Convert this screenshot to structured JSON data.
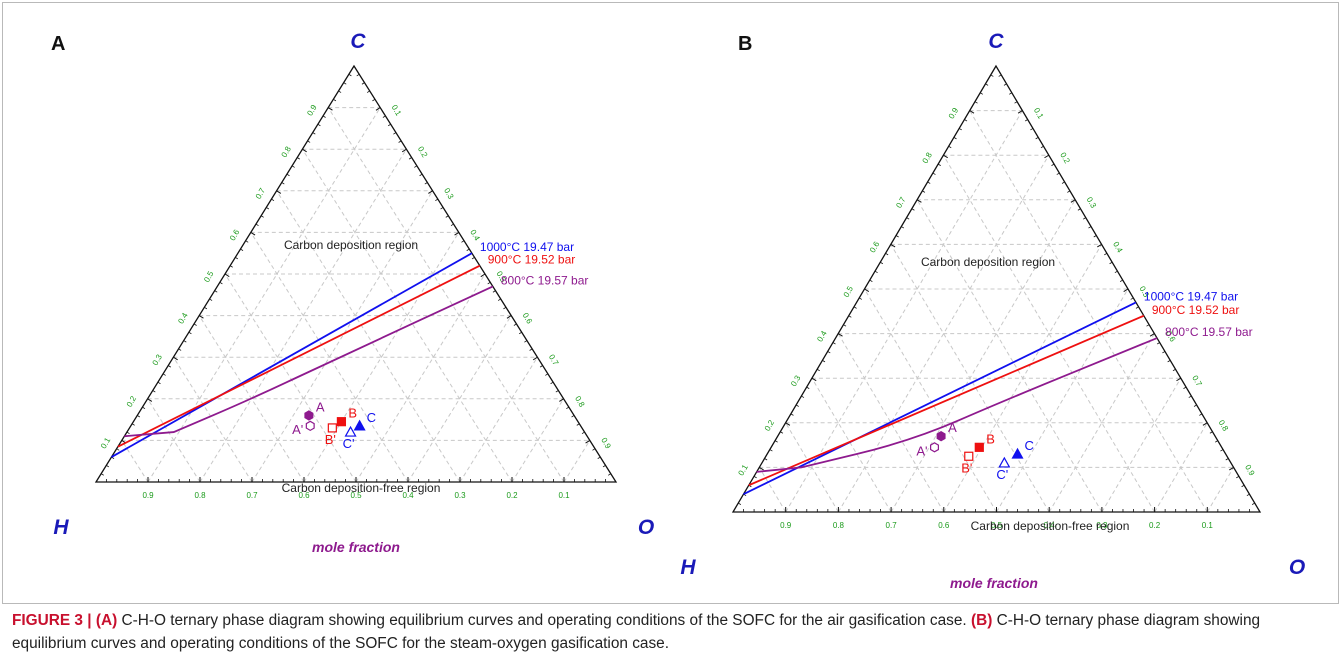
{
  "figure": {
    "caption_label": "FIGURE 3 |",
    "caption_parts": [
      {
        "bold": "(A)",
        "text": " C-H-O ternary phase diagram showing equilibrium curves and operating conditions of the SOFC for the air gasification case. "
      },
      {
        "bold": "(B)",
        "text": " C-H-O ternary phase diagram showing equilibrium curves and operating conditions of the SOFC for the steam-oxygen gasification case."
      }
    ]
  },
  "colors": {
    "vertex_label": "#1a1ab8",
    "tick_label": "#1a9a1a",
    "axis_title": "#8e1a8e",
    "grid": "#c8c8c8",
    "curve_1000": "#1010ee",
    "curve_900": "#ee1010",
    "curve_800": "#8e1a8e"
  },
  "chart_data": [
    {
      "type": "ternary",
      "panel_label": "A",
      "vertices": {
        "top": "C",
        "left": "H",
        "right": "O"
      },
      "axis_title": "mole fraction",
      "tick_values": [
        "0.1",
        "0.2",
        "0.3",
        "0.4",
        "0.5",
        "0.6",
        "0.7",
        "0.8",
        "0.9"
      ],
      "region_labels": [
        "Carbon deposition region",
        "Carbon deposition-free region"
      ],
      "series": [
        {
          "name": "1000°C 19.47 bar",
          "color": "#1010ee",
          "points": [
            {
              "C": 0.06,
              "H": 0.94,
              "O": 0.0
            },
            {
              "C": 0.55,
              "H": 0.0,
              "O": 0.45
            }
          ]
        },
        {
          "name": "900°C 19.52 bar",
          "color": "#ee1010",
          "points": [
            {
              "C": 0.085,
              "H": 0.915,
              "O": 0.0
            },
            {
              "C": 0.52,
              "H": 0.0,
              "O": 0.48
            }
          ]
        },
        {
          "name": "800°C 19.57 bar",
          "color": "#8e1a8e",
          "points": [
            {
              "C": 0.11,
              "H": 0.89,
              "O": 0.0
            },
            {
              "C": 0.12,
              "H": 0.79,
              "O": 0.09
            },
            {
              "C": 0.2,
              "H": 0.6,
              "O": 0.2
            },
            {
              "C": 0.3,
              "H": 0.38,
              "O": 0.32
            },
            {
              "C": 0.47,
              "H": 0.0,
              "O": 0.53
            }
          ]
        }
      ],
      "points": [
        {
          "label": "A",
          "marker": "filled-hexagon",
          "color": "#8e1a8e",
          "C": 0.16,
          "H": 0.51,
          "O": 0.33
        },
        {
          "label": "A'",
          "marker": "open-hexagon",
          "color": "#8e1a8e",
          "C": 0.135,
          "H": 0.52,
          "O": 0.345
        },
        {
          "label": "B",
          "marker": "filled-square",
          "color": "#ee1010",
          "C": 0.145,
          "H": 0.455,
          "O": 0.4
        },
        {
          "label": "B'",
          "marker": "open-square",
          "color": "#ee1010",
          "C": 0.13,
          "H": 0.48,
          "O": 0.39
        },
        {
          "label": "C",
          "marker": "filled-triangle",
          "color": "#1010ee",
          "C": 0.135,
          "H": 0.425,
          "O": 0.44
        },
        {
          "label": "C'",
          "marker": "open-triangle",
          "color": "#1010ee",
          "C": 0.12,
          "H": 0.45,
          "O": 0.43
        }
      ]
    },
    {
      "type": "ternary",
      "panel_label": "B",
      "vertices": {
        "top": "C",
        "left": "H",
        "right": "O"
      },
      "axis_title": "mole fraction",
      "tick_values": [
        "0.1",
        "0.2",
        "0.3",
        "0.4",
        "0.5",
        "0.6",
        "0.7",
        "0.8",
        "0.9"
      ],
      "region_labels": [
        "Carbon deposition region",
        "Carbon deposition-free region"
      ],
      "series": [
        {
          "name": "1000°C 19.47 bar",
          "color": "#1010ee",
          "points": [
            {
              "C": 0.04,
              "H": 0.96,
              "O": 0.0
            },
            {
              "C": 0.47,
              "H": 0.0,
              "O": 0.53
            }
          ]
        },
        {
          "name": "900°C 19.52 bar",
          "color": "#ee1010",
          "points": [
            {
              "C": 0.06,
              "H": 0.94,
              "O": 0.0
            },
            {
              "C": 0.44,
              "H": 0.0,
              "O": 0.56
            }
          ]
        },
        {
          "name": "800°C 19.57 bar",
          "color": "#8e1a8e",
          "points": [
            {
              "C": 0.09,
              "H": 0.91,
              "O": 0.0
            },
            {
              "C": 0.1,
              "H": 0.82,
              "O": 0.08
            },
            {
              "C": 0.16,
              "H": 0.58,
              "O": 0.26
            },
            {
              "C": 0.25,
              "H": 0.36,
              "O": 0.39
            },
            {
              "C": 0.39,
              "H": 0.0,
              "O": 0.61
            }
          ]
        }
      ],
      "points": [
        {
          "label": "A",
          "marker": "filled-hexagon",
          "color": "#8e1a8e",
          "C": 0.17,
          "H": 0.52,
          "O": 0.31
        },
        {
          "label": "A'",
          "marker": "open-hexagon",
          "color": "#8e1a8e",
          "C": 0.145,
          "H": 0.545,
          "O": 0.31
        },
        {
          "label": "B",
          "marker": "filled-square",
          "color": "#ee1010",
          "C": 0.145,
          "H": 0.46,
          "O": 0.395
        },
        {
          "label": "B'",
          "marker": "open-square",
          "color": "#ee1010",
          "C": 0.125,
          "H": 0.49,
          "O": 0.385
        },
        {
          "label": "C",
          "marker": "filled-triangle",
          "color": "#1010ee",
          "C": 0.13,
          "H": 0.395,
          "O": 0.475
        },
        {
          "label": "C'",
          "marker": "open-triangle",
          "color": "#1010ee",
          "C": 0.11,
          "H": 0.43,
          "O": 0.46
        }
      ]
    }
  ]
}
